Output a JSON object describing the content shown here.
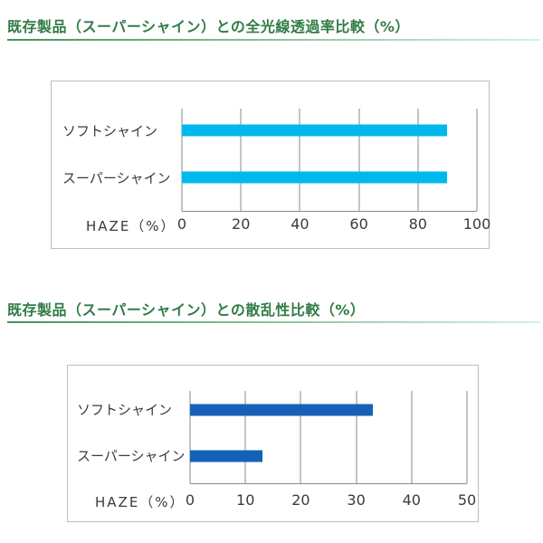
{
  "page": {
    "background": "#ffffff",
    "text_color": "#3b3b3b",
    "box_border_color": "#bdbdbd"
  },
  "sections": [
    {
      "title": "既存製品（スーパーシャイン）との全光線透過率比較（%）",
      "title_color": "#317c46",
      "rule_colors": [
        "#44915a",
        "#d6f1e2"
      ]
    },
    {
      "title": "既存製品（スーパーシャイン）との散乱性比較（%）",
      "title_color": "#317c46",
      "rule_colors": [
        "#44915a",
        "#d6f1e2"
      ]
    }
  ],
  "chart_data": [
    {
      "type": "bar",
      "orientation": "horizontal",
      "title": "既存製品（スーパーシャイン）との全光線透過率比較（%）",
      "categories": [
        "ソフトシャイン",
        "スーパーシャイン"
      ],
      "values": [
        90,
        90
      ],
      "xlabel": "HAZE（%）",
      "xlim": [
        0,
        100
      ],
      "xticks": [
        0,
        20,
        40,
        60,
        80,
        100
      ],
      "bar_color": "#00b8ee",
      "gridline_color": "#8a8a8a",
      "grid": true,
      "legend": false
    },
    {
      "type": "bar",
      "orientation": "horizontal",
      "title": "既存製品（スーパーシャイン）との散乱性比較（%）",
      "categories": [
        "ソフトシャイン",
        "スーパーシャイン"
      ],
      "values": [
        33,
        13
      ],
      "xlabel": "HAZE（%）",
      "xlim": [
        0,
        50
      ],
      "xticks": [
        0,
        10,
        20,
        30,
        40,
        50
      ],
      "bar_color": "#1561b8",
      "gridline_color": "#8a8a8a",
      "grid": true,
      "legend": false
    }
  ]
}
